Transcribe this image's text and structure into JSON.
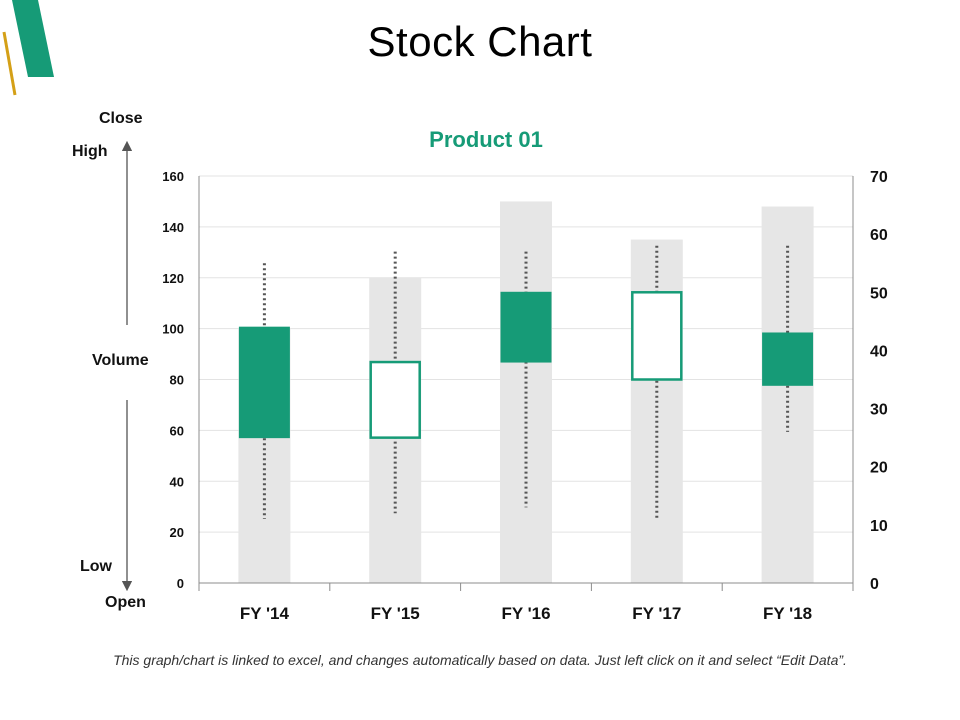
{
  "slide": {
    "title": "Stock Chart",
    "footnote": "This graph/chart is linked to excel, and changes automatically based on data. Just left click on it and select “Edit Data”.",
    "labels": {
      "close": "Close",
      "high": "High",
      "volume": "Volume",
      "low": "Low",
      "open": "Open"
    }
  },
  "colors": {
    "accent": "#169b77",
    "gold": "#d4a017",
    "volume_bar": "#e6e6e6",
    "grid": "#e3e3e3",
    "axis": "#8c8c8c",
    "whisker": "#555555"
  },
  "chart_data": {
    "type": "stock",
    "title": "Product 01",
    "categories": [
      "FY '14",
      "FY '15",
      "FY '16",
      "FY '17",
      "FY '18"
    ],
    "volume_axis": {
      "min": 0,
      "max": 160,
      "ticks": [
        0,
        20,
        40,
        60,
        80,
        100,
        120,
        140,
        160
      ]
    },
    "price_axis": {
      "min": 0,
      "max": 70,
      "ticks": [
        0,
        10,
        20,
        30,
        40,
        50,
        60,
        70
      ]
    },
    "series": [
      {
        "name": "Volume",
        "axis": "left",
        "values": [
          100,
          120,
          150,
          135,
          148
        ]
      },
      {
        "name": "Open",
        "axis": "right",
        "values": [
          25,
          38,
          38,
          50,
          34
        ]
      },
      {
        "name": "High",
        "axis": "right",
        "values": [
          55,
          57,
          57,
          58,
          58
        ]
      },
      {
        "name": "Low",
        "axis": "right",
        "values": [
          11,
          12,
          13,
          11,
          26
        ]
      },
      {
        "name": "Close",
        "axis": "right",
        "values": [
          44,
          25,
          50,
          35,
          43
        ]
      }
    ],
    "grid": true
  }
}
